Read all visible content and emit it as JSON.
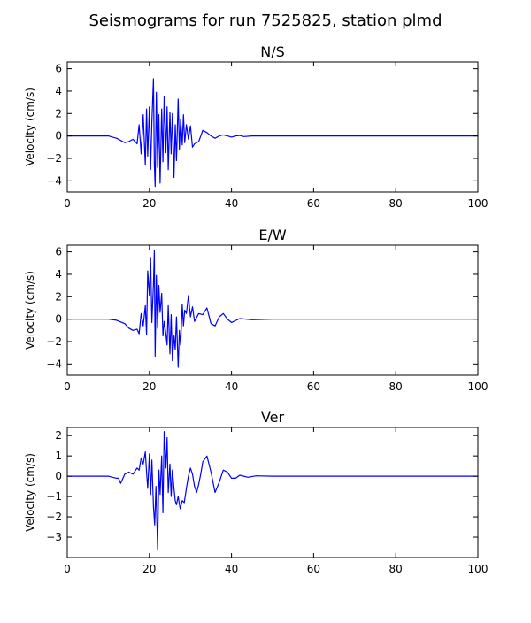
{
  "figure": {
    "title": "Seismograms for run 7525825, station plmd"
  },
  "chart_data": [
    {
      "type": "line",
      "title": "N/S",
      "xlabel": "",
      "ylabel": "Velocity (cm/s)",
      "xlim": [
        0,
        100
      ],
      "ylim": [
        -5,
        6.6
      ],
      "xticks": [
        0,
        20,
        40,
        60,
        80,
        100
      ],
      "yticks": [
        -4,
        -2,
        0,
        2,
        4,
        6
      ],
      "grid": false,
      "series": [
        {
          "color": "#0000ff",
          "x": [
            0,
            10,
            11,
            12,
            13,
            14,
            15,
            16,
            17,
            17.5,
            18,
            18.5,
            19,
            19.3,
            19.6,
            20,
            20.3,
            20.6,
            21,
            21.2,
            21.4,
            21.7,
            22,
            22.3,
            22.6,
            23,
            23.3,
            23.6,
            24,
            24.3,
            24.6,
            25,
            25.3,
            25.6,
            26,
            26.3,
            26.6,
            27,
            27.3,
            27.6,
            28,
            28.3,
            28.6,
            29,
            29.5,
            30,
            30.5,
            31,
            32,
            33,
            34,
            35,
            36,
            37,
            38,
            39,
            40,
            41,
            42,
            43,
            45,
            50,
            60,
            100
          ],
          "y": [
            0,
            0,
            -0.1,
            -0.2,
            -0.4,
            -0.6,
            -0.5,
            -0.3,
            -0.7,
            1.0,
            -1.6,
            1.9,
            -2.6,
            2.4,
            -1.8,
            2.6,
            -3.0,
            1.2,
            5.1,
            -2.5,
            -4.5,
            3.9,
            -2.8,
            1.9,
            -4.2,
            2.4,
            -2.3,
            3.5,
            -1.5,
            2.6,
            -3.0,
            2.1,
            -1.6,
            2.0,
            -3.7,
            1.0,
            -2.2,
            3.3,
            -1.2,
            1.5,
            -0.8,
            1.9,
            -0.6,
            1.0,
            -0.3,
            0.9,
            -1.0,
            -0.7,
            -0.5,
            0.5,
            0.3,
            0,
            -0.2,
            0,
            0.1,
            0,
            -0.1,
            0,
            0.05,
            -0.05,
            0,
            0,
            0,
            0
          ]
        }
      ]
    },
    {
      "type": "line",
      "title": "E/W",
      "xlabel": "",
      "ylabel": "Velocity (cm/s)",
      "xlim": [
        0,
        100
      ],
      "ylim": [
        -5,
        6.6
      ],
      "xticks": [
        0,
        20,
        40,
        60,
        80,
        100
      ],
      "yticks": [
        -4,
        -2,
        0,
        2,
        4,
        6
      ],
      "grid": false,
      "series": [
        {
          "color": "#0000ff",
          "x": [
            0,
            10,
            12,
            14,
            15,
            16,
            17,
            17.5,
            18,
            18.5,
            19,
            19.3,
            19.6,
            20,
            20.3,
            20.6,
            21,
            21.2,
            21.4,
            21.7,
            22,
            22.3,
            22.6,
            23,
            23.3,
            23.6,
            24,
            24.3,
            24.6,
            25,
            25.3,
            25.6,
            26,
            26.3,
            26.6,
            27,
            27.3,
            27.6,
            28,
            28.3,
            28.6,
            29,
            29.5,
            30,
            30.5,
            31,
            32,
            33,
            34,
            35,
            36,
            37,
            38,
            39,
            40,
            42,
            45,
            50,
            60,
            100
          ],
          "y": [
            0,
            0,
            -0.1,
            -0.4,
            -0.8,
            -1.0,
            -0.9,
            -1.3,
            0.5,
            -0.6,
            1.2,
            -1.4,
            4.3,
            2.1,
            5.5,
            -0.3,
            3.1,
            6.1,
            -3.3,
            3.9,
            -0.8,
            3.0,
            0.6,
            2.3,
            -1.5,
            -0.2,
            -1.3,
            -2.3,
            1.2,
            -3.1,
            0.4,
            -3.7,
            -1.5,
            -2.7,
            0.2,
            -4.3,
            -1.0,
            -2.3,
            1.3,
            -0.6,
            0.8,
            0.5,
            2.1,
            0.2,
            1.1,
            -0.2,
            0.5,
            0.4,
            1.0,
            -0.4,
            -0.6,
            0.2,
            0.5,
            0,
            -0.3,
            0.05,
            -0.05,
            0,
            0,
            0
          ]
        }
      ]
    },
    {
      "type": "line",
      "title": "Ver",
      "xlabel": "",
      "ylabel": "Velocity (cm/s)",
      "xlim": [
        0,
        100
      ],
      "ylim": [
        -4,
        2.4
      ],
      "xticks": [
        0,
        20,
        40,
        60,
        80,
        100
      ],
      "yticks": [
        -3,
        -2,
        -1,
        0,
        1,
        2
      ],
      "grid": false,
      "series": [
        {
          "color": "#0000ff",
          "x": [
            0,
            10,
            11,
            12,
            12.5,
            13,
            14,
            15,
            16,
            17,
            17.5,
            18,
            18.5,
            19,
            19.3,
            19.6,
            20,
            20.3,
            20.6,
            21,
            21.3,
            21.6,
            22,
            22.3,
            22.6,
            23,
            23.3,
            23.6,
            24,
            24.3,
            24.6,
            25,
            25.3,
            25.6,
            26,
            26.3,
            26.6,
            27,
            27.5,
            28,
            28.5,
            29,
            29.5,
            30,
            30.5,
            31,
            31.5,
            32,
            32.5,
            33,
            34,
            35,
            36,
            37,
            38,
            39,
            40,
            41,
            42,
            44,
            46,
            50,
            60,
            100
          ],
          "y": [
            0,
            0,
            -0.05,
            -0.1,
            -0.1,
            -0.35,
            0.1,
            0.2,
            0.1,
            0.4,
            0.3,
            0.9,
            0.6,
            1.2,
            0.2,
            -0.6,
            1.1,
            -0.9,
            0.8,
            -1.5,
            -2.4,
            -0.5,
            -3.6,
            0.3,
            -0.9,
            1.0,
            -1.8,
            2.2,
            0.4,
            1.9,
            -0.8,
            0.6,
            -1.0,
            0.3,
            -0.6,
            -1.2,
            -1.4,
            -1.0,
            -1.6,
            -1.2,
            -1.3,
            -0.6,
            0.0,
            0.4,
            0.1,
            -0.5,
            -0.8,
            -0.4,
            0.1,
            0.7,
            1.0,
            0.2,
            -0.8,
            -0.3,
            0.3,
            0.2,
            -0.1,
            -0.1,
            0.05,
            -0.05,
            0.02,
            0,
            0,
            0
          ]
        }
      ]
    }
  ]
}
